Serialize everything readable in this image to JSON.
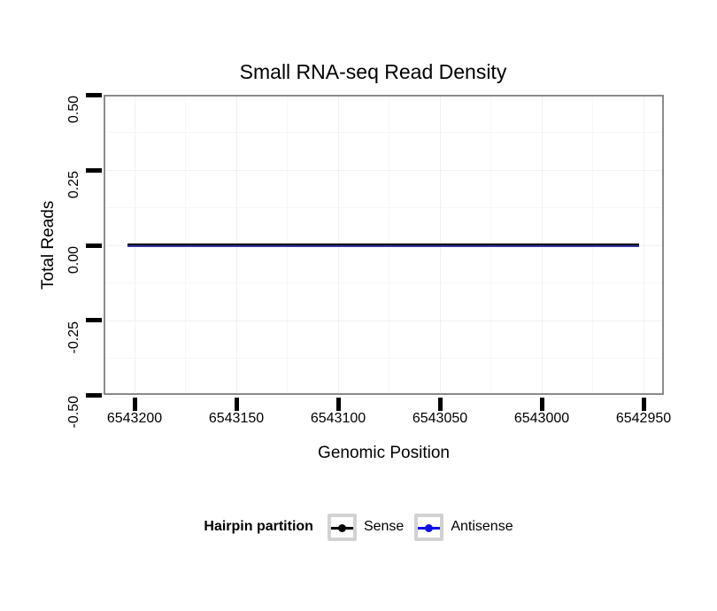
{
  "title": "Small RNA-seq Read Density",
  "axes": {
    "x": {
      "label": "Genomic Position",
      "ticks": [
        "6543200",
        "6543150",
        "6543100",
        "6543050",
        "6543000",
        "6542950"
      ]
    },
    "y": {
      "label": "Total Reads",
      "ticks": [
        "0.50",
        "0.25",
        "0.00",
        "-0.25",
        "-0.50"
      ]
    }
  },
  "legend": {
    "title": "Hairpin partition",
    "items": [
      {
        "label": "Sense",
        "color": "#000000"
      },
      {
        "label": "Antisense",
        "color": "#0f0fe8"
      }
    ]
  },
  "colors": {
    "panel_border": "#8b8b8b",
    "grid_major": "#f1f1f1",
    "grid_minor": "#f7f7f7",
    "sense": "#000000",
    "antisense": "#0f0fe8",
    "plot_line_blue": "#3333a6",
    "legend_key_border": "#d2d2d2"
  },
  "chart_data": {
    "type": "line",
    "title": "Small RNA-seq Read Density",
    "xlabel": "Genomic Position",
    "ylabel": "Total Reads",
    "x_axis": {
      "reversed": true,
      "tick_values": [
        6543200,
        6543150,
        6543100,
        6543050,
        6543000,
        6542950
      ],
      "range_shown": [
        6543215,
        6542940
      ]
    },
    "ylim": [
      -0.5,
      0.5
    ],
    "y_tick_values": [
      0.5,
      0.25,
      0.0,
      -0.25,
      -0.5
    ],
    "series": [
      {
        "name": "Sense",
        "color": "#000000",
        "x_start": 6543203,
        "x_end": 6542952,
        "constant_y": 0
      },
      {
        "name": "Antisense",
        "color": "#0f0fe8",
        "x_start": 6543203,
        "x_end": 6542952,
        "constant_y": 0
      }
    ],
    "legend_title": "Hairpin partition",
    "legend_position": "bottom",
    "grid": true
  }
}
